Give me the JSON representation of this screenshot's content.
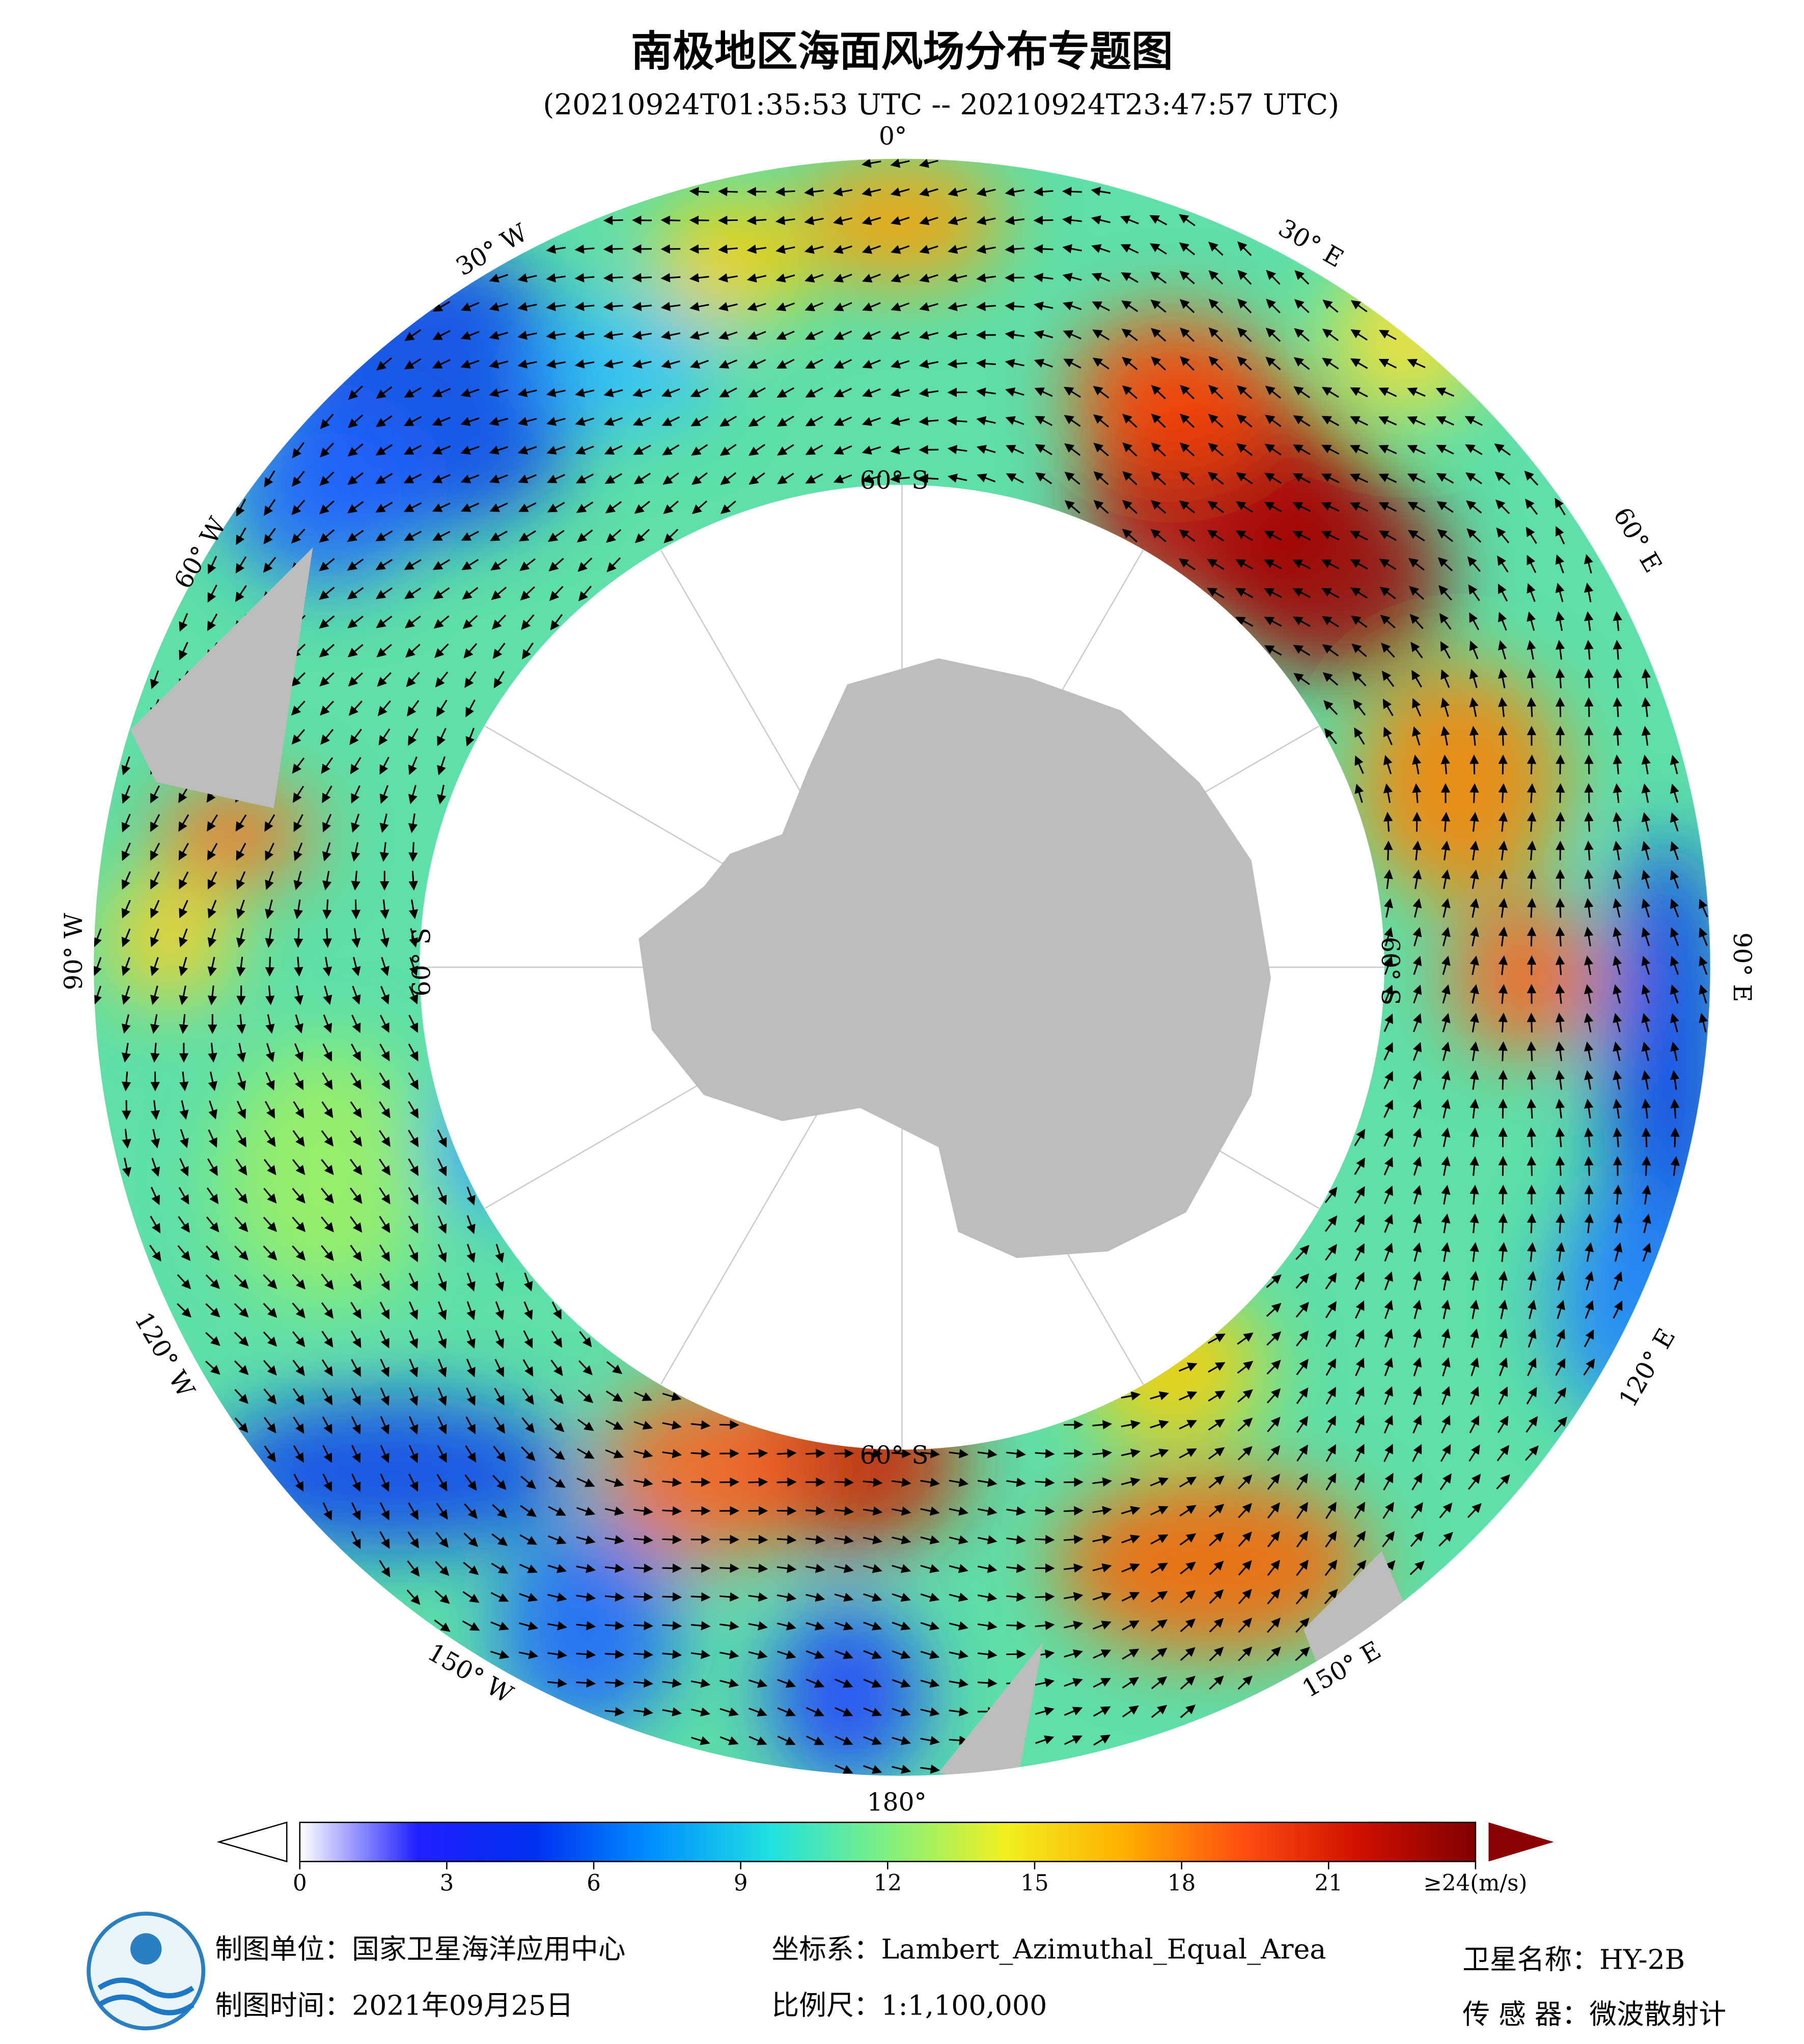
{
  "header": {
    "title": "南极地区海面风场分布专题图",
    "subtitle": "(20210924T01:35:53 UTC -- 20210924T23:47:57 UTC)"
  },
  "map": {
    "longitude_labels": [
      "0°",
      "30° E",
      "60° E",
      "90° E",
      "120° E",
      "150° E",
      "180°",
      "150° W",
      "120° W",
      "90° W",
      "60° W",
      "30° W"
    ],
    "latitude_labels": [
      "60° S"
    ]
  },
  "colorbar": {
    "range": [
      0,
      24
    ],
    "ticks": [
      0,
      3,
      6,
      9,
      12,
      15,
      18,
      21,
      {
        "value": 24,
        "label": "≥24(m/s)"
      }
    ]
  },
  "footer": {
    "producer": "制图单位：国家卫星海洋应用中心",
    "date": "制图时间：2021年09月25日",
    "projection": "坐标系：Lambert_Azimuthal_Equal_Area",
    "scale": "比例尺：1:1,100,000",
    "satellite": "卫星名称：HY-2B",
    "sensor": "传 感 器：微波散射计"
  }
}
